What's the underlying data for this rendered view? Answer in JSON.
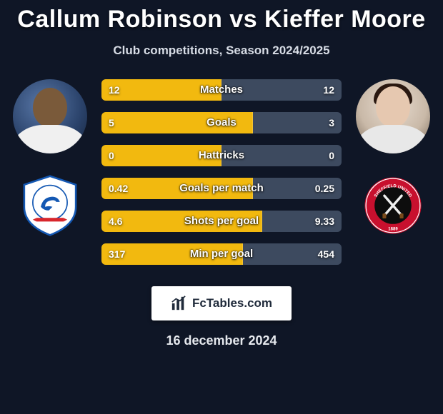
{
  "title": "Callum Robinson vs Kieffer Moore",
  "subtitle": "Club competitions, Season 2024/2025",
  "player1": {
    "name": "Callum Robinson",
    "club": "Cardiff City FC"
  },
  "player2": {
    "name": "Kieffer Moore",
    "club": "Sheffield United FC"
  },
  "bar_colors": {
    "left": "#f2b90f",
    "right": "#3d4a5f"
  },
  "stats": [
    {
      "label": "Matches",
      "left_val": "12",
      "right_val": "12",
      "left_pct": 50,
      "right_pct": 50
    },
    {
      "label": "Goals",
      "left_val": "5",
      "right_val": "3",
      "left_pct": 63,
      "right_pct": 37
    },
    {
      "label": "Hattricks",
      "left_val": "0",
      "right_val": "0",
      "left_pct": 50,
      "right_pct": 50
    },
    {
      "label": "Goals per match",
      "left_val": "0.42",
      "right_val": "0.25",
      "left_pct": 63,
      "right_pct": 37
    },
    {
      "label": "Shots per goal",
      "left_val": "4.6",
      "right_val": "9.33",
      "left_pct": 67,
      "right_pct": 33
    },
    {
      "label": "Min per goal",
      "left_val": "317",
      "right_val": "454",
      "left_pct": 59,
      "right_pct": 41
    }
  ],
  "watermark": "FcTables.com",
  "date": "16 december 2024",
  "crest_colors": {
    "cardiff": {
      "outer": "#ffffff",
      "ring": "#1458b3",
      "inner_bg": "#ffffff",
      "bird": "#1458b3",
      "accent": "#d8262c"
    },
    "sheffield": {
      "outer": "#ffffff",
      "ring": "#c8102e",
      "inner_bg": "#0d0d0d",
      "swords": "#efefef",
      "text": "#ffffff"
    }
  },
  "background_color": "#0f1626"
}
